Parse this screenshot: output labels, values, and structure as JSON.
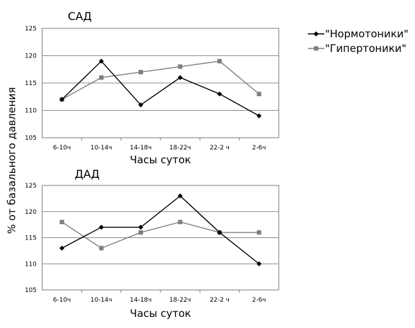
{
  "y_axis_label": "% от базального давления",
  "legend": [
    {
      "label": "\"Нормотоники\"",
      "color": "#000000",
      "marker": "diamond"
    },
    {
      "label": "\"Гипертоники\"",
      "color": "#7f7f7f",
      "marker": "square"
    }
  ],
  "chart_data": [
    {
      "type": "line",
      "title": "САД",
      "xlabel": "Часы суток",
      "ylabel": "% от базального давления",
      "categories": [
        "6-10ч",
        "10-14ч",
        "14-18ч",
        "18-22ч",
        "22-2 ч",
        "2-6ч"
      ],
      "ylim": [
        105,
        125
      ],
      "yticks": [
        105,
        110,
        115,
        120,
        125
      ],
      "grid": true,
      "legend_position": "top-right",
      "series": [
        {
          "name": "\"Нормотоники\"",
          "color": "#000000",
          "marker": "diamond",
          "values": [
            112,
            119,
            111,
            116,
            113,
            109
          ]
        },
        {
          "name": "\"Гипертоники\"",
          "color": "#7f7f7f",
          "marker": "square",
          "values": [
            112,
            116,
            117,
            118,
            119,
            113
          ]
        }
      ]
    },
    {
      "type": "line",
      "title": "ДАД",
      "xlabel": "Часы суток",
      "ylabel": "% от базального давления",
      "categories": [
        "6-10ч",
        "10-14ч",
        "14-18ч",
        "18-22ч",
        "22-2 ч",
        "2-6ч"
      ],
      "ylim": [
        105,
        125
      ],
      "yticks": [
        105,
        110,
        115,
        120,
        125
      ],
      "grid": true,
      "legend_position": "top-right",
      "series": [
        {
          "name": "\"Нормотоники\"",
          "color": "#000000",
          "marker": "diamond",
          "values": [
            113,
            117,
            117,
            123,
            116,
            110
          ]
        },
        {
          "name": "\"Гипертоники\"",
          "color": "#7f7f7f",
          "marker": "square",
          "values": [
            118,
            113,
            116,
            118,
            116,
            116
          ]
        }
      ]
    }
  ]
}
